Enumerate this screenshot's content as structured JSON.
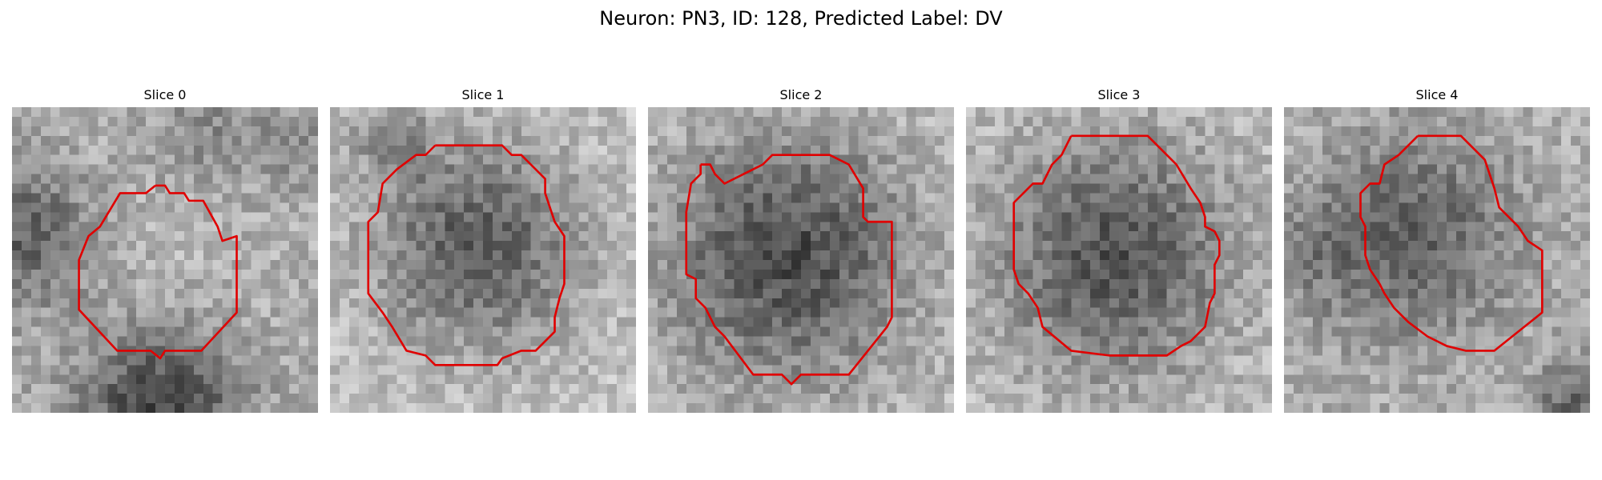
{
  "figure": {
    "title": "Neuron: PN3, ID: 128, Predicted Label: DV"
  },
  "slices": [
    {
      "title": "Slice 0",
      "contour_color": "#e00000"
    },
    {
      "title": "Slice 1",
      "contour_color": "#e00000"
    },
    {
      "title": "Slice 2",
      "contour_color": "#e00000"
    },
    {
      "title": "Slice 3",
      "contour_color": "#e00000"
    },
    {
      "title": "Slice 4",
      "contour_color": "#e00000"
    }
  ]
}
